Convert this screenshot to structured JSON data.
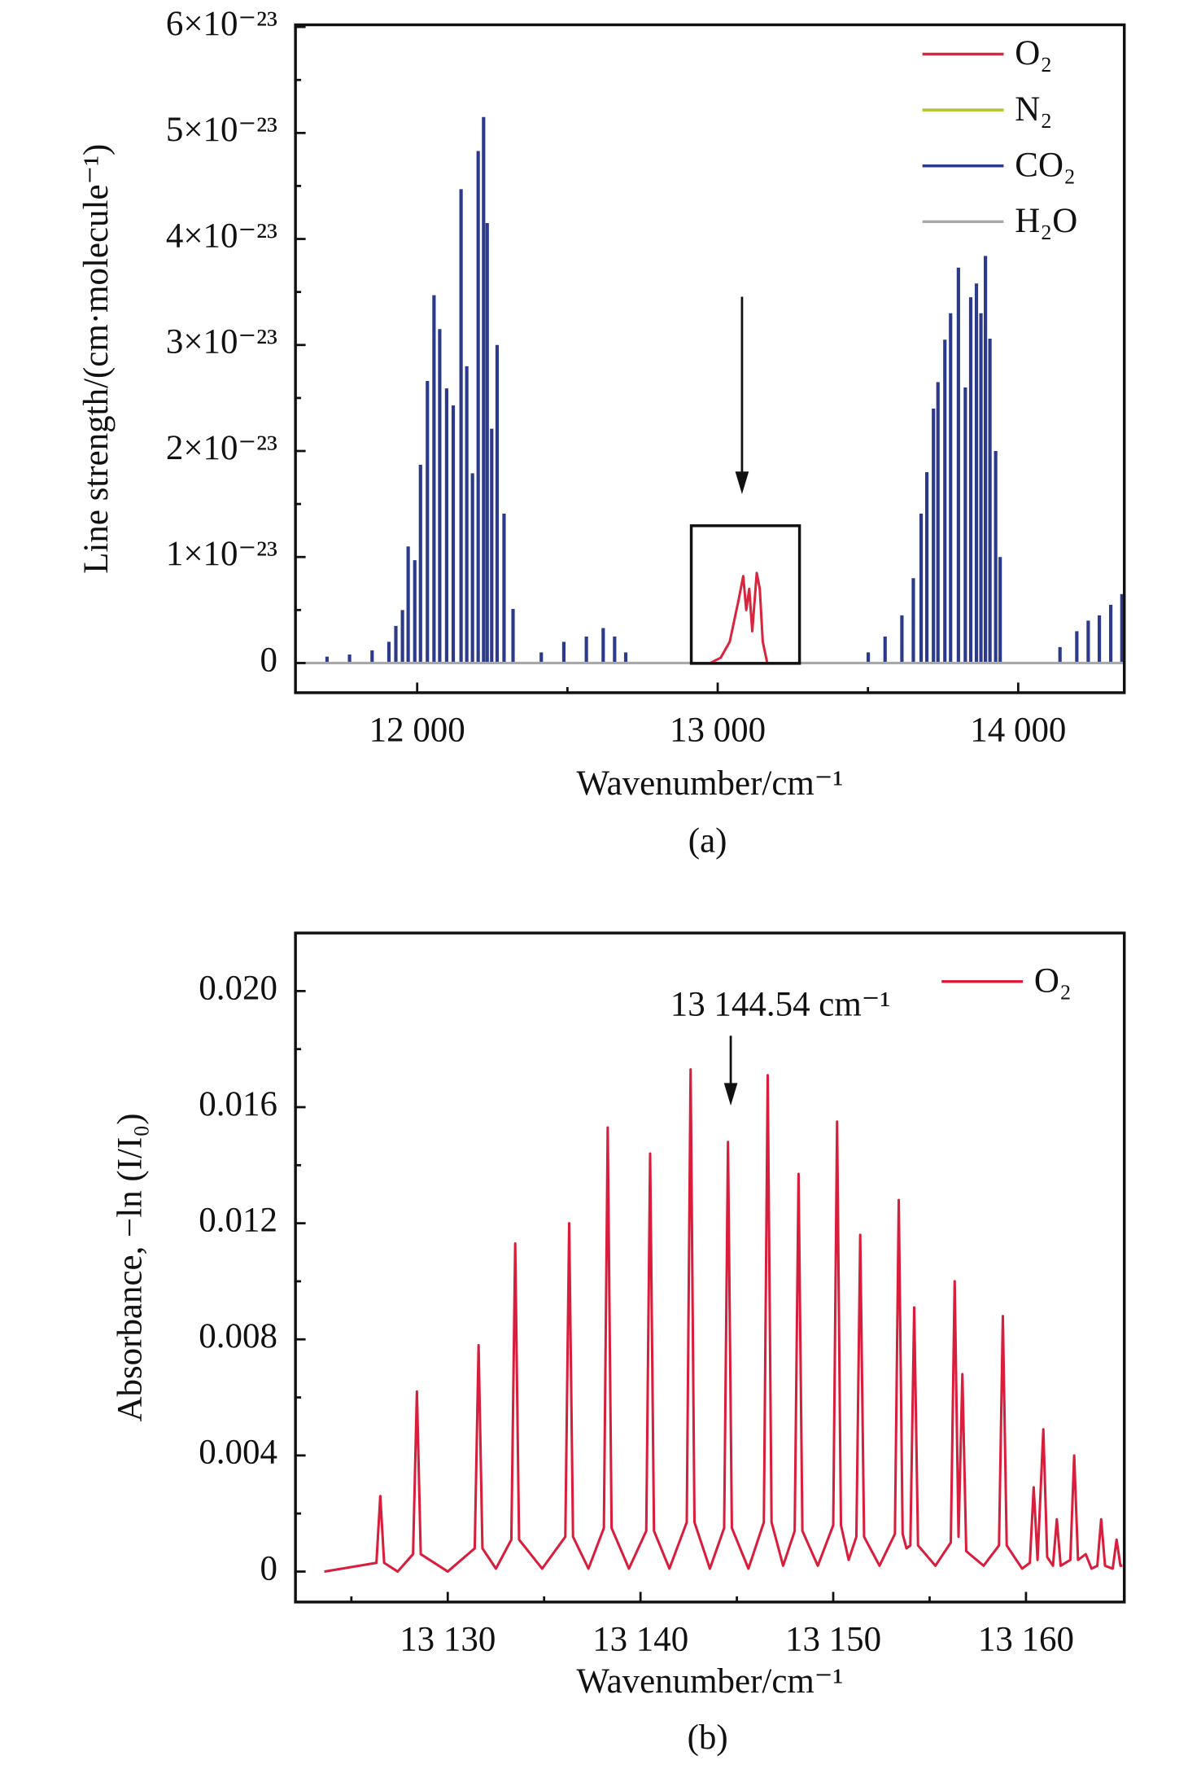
{
  "chart_data": [
    {
      "type": "stick",
      "panel": "(a)",
      "x_label": "Wavenumber/cm⁻¹",
      "y_label": "Line strength/(cm·molecule⁻¹)",
      "xlim": [
        11595,
        14353
      ],
      "ylim": [
        -2.8e-24,
        6.02e-23
      ],
      "xticks": [
        {
          "value": 12000,
          "label": "12 000"
        },
        {
          "value": 13000,
          "label": "13 000"
        },
        {
          "value": 14000,
          "label": "14 000"
        }
      ],
      "xminorticks": [
        12500,
        13500
      ],
      "yticks": [
        0,
        {
          "value": 1e-23,
          "label": "1×10⁻²³"
        },
        {
          "value": 2e-23,
          "label": "2×10⁻²³"
        },
        {
          "value": 3e-23,
          "label": "3×10⁻²³"
        },
        {
          "value": 4e-23,
          "label": "4×10⁻²³"
        },
        {
          "value": 5e-23,
          "label": "5×10⁻²³"
        },
        {
          "value": 6e-23,
          "label": "6×10⁻²³"
        }
      ],
      "yminorticks": [
        5e-24,
        1.5e-23,
        2.5e-23,
        3.5e-23,
        4.5e-23,
        5.5e-23
      ],
      "legend": "upper right",
      "series": [
        {
          "name": "O₂",
          "color": "#d7263d",
          "style": "line",
          "x": [
            12975,
            13010,
            13040,
            13070,
            13085,
            13095,
            13105,
            13115,
            13130,
            13140,
            13150,
            13165
          ],
          "values": [
            0,
            5e-25,
            2e-24,
            6e-24,
            8.2e-24,
            5e-24,
            7e-24,
            3e-24,
            8.5e-24,
            7e-24,
            2e-24,
            0
          ]
        },
        {
          "name": "N₂",
          "color": "#b5c22b",
          "style": "line",
          "x": [],
          "values": []
        },
        {
          "name": "CO₂",
          "color": "#2b3a8a",
          "style": "stick",
          "x": [
            11700,
            11775,
            11850,
            11906,
            11929,
            11951,
            11970,
            11992,
            12011,
            12034,
            12056,
            12075,
            12098,
            12120,
            12146,
            12165,
            12184,
            12203,
            12221,
            12233,
            12248,
            12266,
            12289,
            12319,
            12413,
            12488,
            12563,
            12619,
            12657,
            12694,
            13501,
            13557,
            13613,
            13651,
            13677,
            13696,
            13718,
            13733,
            13756,
            13775,
            13801,
            13824,
            13842,
            13861,
            13876,
            13891,
            13906,
            13925,
            13940,
            14139,
            14195,
            14233,
            14270,
            14308,
            14345
          ],
          "values": [
            6e-25,
            8e-25,
            1.2e-24,
            2e-24,
            3.5e-24,
            5e-24,
            1.1e-23,
            9.7e-24,
            1.87e-23,
            2.66e-23,
            3.47e-23,
            3.15e-23,
            2.59e-23,
            2.43e-23,
            4.47e-23,
            2.8e-23,
            1.79e-23,
            4.83e-23,
            5.15e-23,
            4.15e-23,
            2.21e-23,
            3e-23,
            1.41e-23,
            5.1e-24,
            1e-24,
            2e-24,
            2.5e-24,
            3.3e-24,
            2.5e-24,
            1e-24,
            1e-24,
            2.5e-24,
            4.5e-24,
            8e-24,
            1.41e-23,
            1.8e-23,
            2.4e-23,
            2.65e-23,
            3.05e-23,
            3.3e-23,
            3.73e-23,
            2.6e-23,
            3.45e-23,
            3.58e-23,
            3.3e-23,
            3.84e-23,
            3.06e-23,
            2e-23,
            1e-23,
            1.5e-24,
            3e-24,
            4e-24,
            4.5e-24,
            5.5e-24,
            6.5e-24
          ]
        },
        {
          "name": "H₂O",
          "color": "#a8a8a8",
          "style": "line",
          "x": [
            11595,
            14353
          ],
          "values": [
            0,
            0
          ]
        }
      ]
    },
    {
      "type": "line",
      "panel": "(b)",
      "x_label": "Wavenumber/cm⁻¹",
      "y_label": "Absorbance, −ln (I/I₀)",
      "annotations": [
        {
          "text": "13 144.54 cm⁻¹"
        }
      ],
      "xlim": [
        13122.1,
        13165.1
      ],
      "ylim": [
        -0.00105,
        0.022
      ],
      "xticks": [
        {
          "value": 13130,
          "label": "13 130"
        },
        {
          "value": 13140,
          "label": "13 140"
        },
        {
          "value": 13150,
          "label": "13 150"
        },
        {
          "value": 13160,
          "label": "13 160"
        }
      ],
      "xminorticks": [
        13125,
        13135,
        13145,
        13155
      ],
      "yticks": [
        0,
        0.004,
        0.008,
        0.012,
        0.016,
        {
          "value": 0.02,
          "label": "0.020"
        }
      ],
      "yminorticks": [
        0.002,
        0.006,
        0.01,
        0.014,
        0.018
      ],
      "legend": "upper right",
      "series": [
        {
          "name": "O₂",
          "color": "#d81e3c",
          "style": "line",
          "x": [
            13123.6,
            13126.3,
            13126.5,
            13126.7,
            13127.4,
            13128.2,
            13128.4,
            13128.6,
            13130.0,
            13131.4,
            13131.6,
            13131.8,
            13132.5,
            13133.3,
            13133.5,
            13133.7,
            13134.9,
            13136.1,
            13136.3,
            13136.5,
            13137.3,
            13138.1,
            13138.3,
            13138.5,
            13139.4,
            13140.3,
            13140.5,
            13140.7,
            13141.5,
            13142.4,
            13142.6,
            13142.8,
            13143.6,
            13144.34,
            13144.54,
            13144.74,
            13145.6,
            13146.4,
            13146.6,
            13146.8,
            13147.4,
            13148.0,
            13148.2,
            13148.4,
            13149.2,
            13150.0,
            13150.2,
            13150.4,
            13150.8,
            13151.2,
            13151.4,
            13151.6,
            13152.4,
            13153.2,
            13153.4,
            13153.6,
            13153.8,
            13154.0,
            13154.2,
            13154.4,
            13155.3,
            13156.1,
            13156.3,
            13156.5,
            13156.7,
            13156.9,
            13157.8,
            13158.6,
            13158.8,
            13159.0,
            13159.8,
            13160.2,
            13160.4,
            13160.6,
            13160.9,
            13161.1,
            13161.4,
            13161.6,
            13161.8,
            13162.3,
            13162.5,
            13162.7,
            13163.1,
            13163.4,
            13163.7,
            13163.9,
            13164.1,
            13164.5,
            13164.7,
            13164.9,
            13165.0
          ],
          "values": [
            0,
            0.0003,
            0.0026,
            0.0003,
            0,
            0.0006,
            0.0062,
            0.0006,
            0,
            0.0008,
            0.0078,
            0.0008,
            0.0001,
            0.0011,
            0.0113,
            0.0011,
            0.0001,
            0.0012,
            0.012,
            0.0012,
            0.0001,
            0.0015,
            0.0153,
            0.0015,
            0.0001,
            0.0014,
            0.0144,
            0.0014,
            0.0001,
            0.0017,
            0.0173,
            0.0017,
            0.0001,
            0.0015,
            0.0148,
            0.0015,
            0.0001,
            0.0017,
            0.0171,
            0.0017,
            0.0002,
            0.0014,
            0.0137,
            0.0014,
            0.0002,
            0.0016,
            0.0155,
            0.0016,
            0.0004,
            0.0012,
            0.0116,
            0.0012,
            0.0002,
            0.0013,
            0.0128,
            0.0013,
            0.0008,
            0.0009,
            0.0091,
            0.0009,
            0.0002,
            0.001,
            0.01,
            0.0012,
            0.0068,
            0.0007,
            0.0002,
            0.0009,
            0.0088,
            0.0009,
            0.0001,
            0.0003,
            0.0029,
            0.0004,
            0.0049,
            0.0005,
            0.0002,
            0.0018,
            0.0002,
            0.0004,
            0.004,
            0.0004,
            0.0006,
            0.0001,
            0.0002,
            0.0018,
            0.0002,
            0.0001,
            0.0011,
            0.0002,
            0.0002
          ]
        }
      ]
    }
  ]
}
